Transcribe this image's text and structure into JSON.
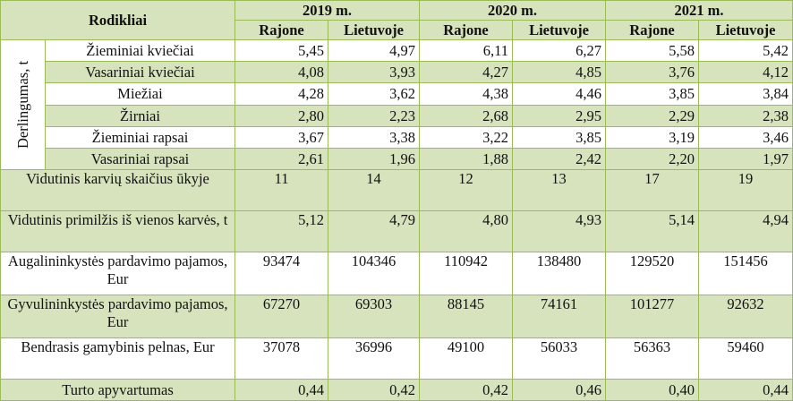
{
  "header": {
    "indicators": "Rodikliai",
    "years": [
      "2019 m.",
      "2020 m.",
      "2021 m."
    ],
    "sub": [
      "Rajone",
      "Lietuvoje",
      "Rajone",
      "Lietuvoje",
      "Rajone",
      "Lietuvoje"
    ]
  },
  "yield_group": "Derlingumas, t",
  "crops": [
    {
      "label": "Žieminiai kviečiai",
      "values": [
        "5,45",
        "4,97",
        "6,11",
        "6,27",
        "5,58",
        "5,42"
      ]
    },
    {
      "label": "Vasariniai kviečiai",
      "values": [
        "4,08",
        "3,93",
        "4,27",
        "4,85",
        "3,76",
        "4,12"
      ]
    },
    {
      "label": "Miežiai",
      "values": [
        "4,28",
        "3,62",
        "4,38",
        "4,46",
        "3,85",
        "3,84"
      ]
    },
    {
      "label": "Žirniai",
      "values": [
        "2,80",
        "2,23",
        "2,68",
        "2,95",
        "2,29",
        "2,38"
      ]
    },
    {
      "label": "Žieminiai rapsai",
      "values": [
        "3,67",
        "3,38",
        "3,22",
        "3,85",
        "3,19",
        "3,46"
      ]
    },
    {
      "label": "Vasariniai rapsai",
      "values": [
        "2,61",
        "1,96",
        "1,88",
        "2,42",
        "2,20",
        "1,97"
      ]
    }
  ],
  "others": [
    {
      "label": "Vidutinis karvių skaičius ūkyje",
      "values": [
        "11",
        "14",
        "12",
        "13",
        "17",
        "19"
      ]
    },
    {
      "label": "Vidutinis primilžis iš vienos karvės, t",
      "values": [
        "5,12",
        "4,79",
        "4,80",
        "4,93",
        "5,14",
        "4,94"
      ]
    },
    {
      "label": "Augalininkystės pardavimo pajamos, Eur",
      "values": [
        "93474",
        "104346",
        "110942",
        "138480",
        "129520",
        "151456"
      ]
    },
    {
      "label": "Gyvulininkystės pardavimo pajamos, Eur",
      "values": [
        "67270",
        "69303",
        "88145",
        "74161",
        "101277",
        "92632"
      ]
    },
    {
      "label": "Bendrasis gamybinis pelnas, Eur",
      "values": [
        "37078",
        "36996",
        "49100",
        "56033",
        "56363",
        "59460"
      ]
    },
    {
      "label": "Turto apyvartumas",
      "values": [
        "0,44",
        "0,42",
        "0,42",
        "0,46",
        "0,40",
        "0,44"
      ]
    }
  ]
}
